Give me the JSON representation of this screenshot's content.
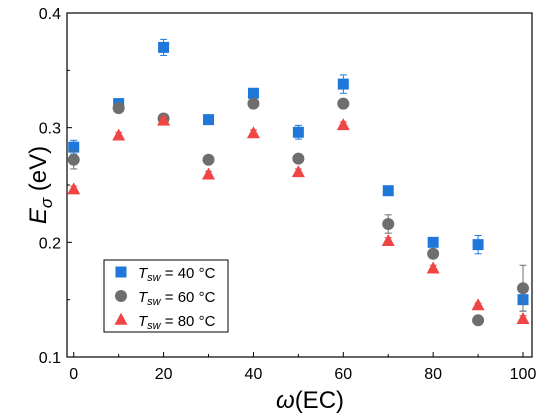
{
  "chart_data": {
    "type": "scatter",
    "xlabel": {
      "italic": "ω",
      "rest": "(EC)"
    },
    "ylabel": {
      "italic": "E",
      "sub": "σ",
      "rest": " (eV)"
    },
    "xlim": [
      -1.5,
      102
    ],
    "ylim": [
      0.1,
      0.4
    ],
    "xticks": [
      0,
      20,
      40,
      60,
      80,
      100
    ],
    "yticks": [
      0.1,
      0.2,
      0.3,
      0.4
    ],
    "grid": false,
    "legend_position": "bottom-left",
    "series": [
      {
        "name": "T_sw = 40 °C",
        "legend": {
          "italic": "T",
          "sub": "sw",
          "rest": " = 40 °C"
        },
        "marker": "square",
        "color": "#1f77d9",
        "x": [
          0,
          10,
          20,
          30,
          40,
          50,
          60,
          70,
          80,
          90,
          100
        ],
        "y": [
          0.283,
          0.321,
          0.37,
          0.307,
          0.33,
          0.296,
          0.338,
          0.245,
          0.2,
          0.198,
          0.15
        ],
        "err": [
          0.006,
          0.003,
          0.007,
          0.004,
          0.004,
          0.006,
          0.008,
          0.003,
          0.003,
          0.008,
          0.01
        ]
      },
      {
        "name": "T_sw = 60 °C",
        "legend": {
          "italic": "T",
          "sub": "sw",
          "rest": " = 60 °C"
        },
        "marker": "circle",
        "color": "#6e6e6e",
        "x": [
          0,
          10,
          20,
          30,
          40,
          50,
          60,
          70,
          80,
          90,
          100
        ],
        "y": [
          0.272,
          0.317,
          0.308,
          0.272,
          0.321,
          0.273,
          0.321,
          0.216,
          0.19,
          0.132,
          0.16
        ],
        "err": [
          0.008,
          0.003,
          0.003,
          0.003,
          0.003,
          0.003,
          0.004,
          0.008,
          0.004,
          0.002,
          0.02
        ]
      },
      {
        "name": "T_sw = 80 °C",
        "legend": {
          "italic": "T",
          "sub": "sw",
          "rest": " = 80 °C"
        },
        "marker": "triangle",
        "color": "#f04545",
        "x": [
          0,
          10,
          20,
          30,
          40,
          50,
          60,
          70,
          80,
          90,
          100
        ],
        "y": [
          0.246,
          0.293,
          0.306,
          0.259,
          0.295,
          0.261,
          0.302,
          0.201,
          0.177,
          0.145,
          0.133
        ],
        "err": [
          0.003,
          0.003,
          0.003,
          0.003,
          0.003,
          0.003,
          0.003,
          0.003,
          0.003,
          0.002,
          0.003
        ]
      }
    ]
  }
}
